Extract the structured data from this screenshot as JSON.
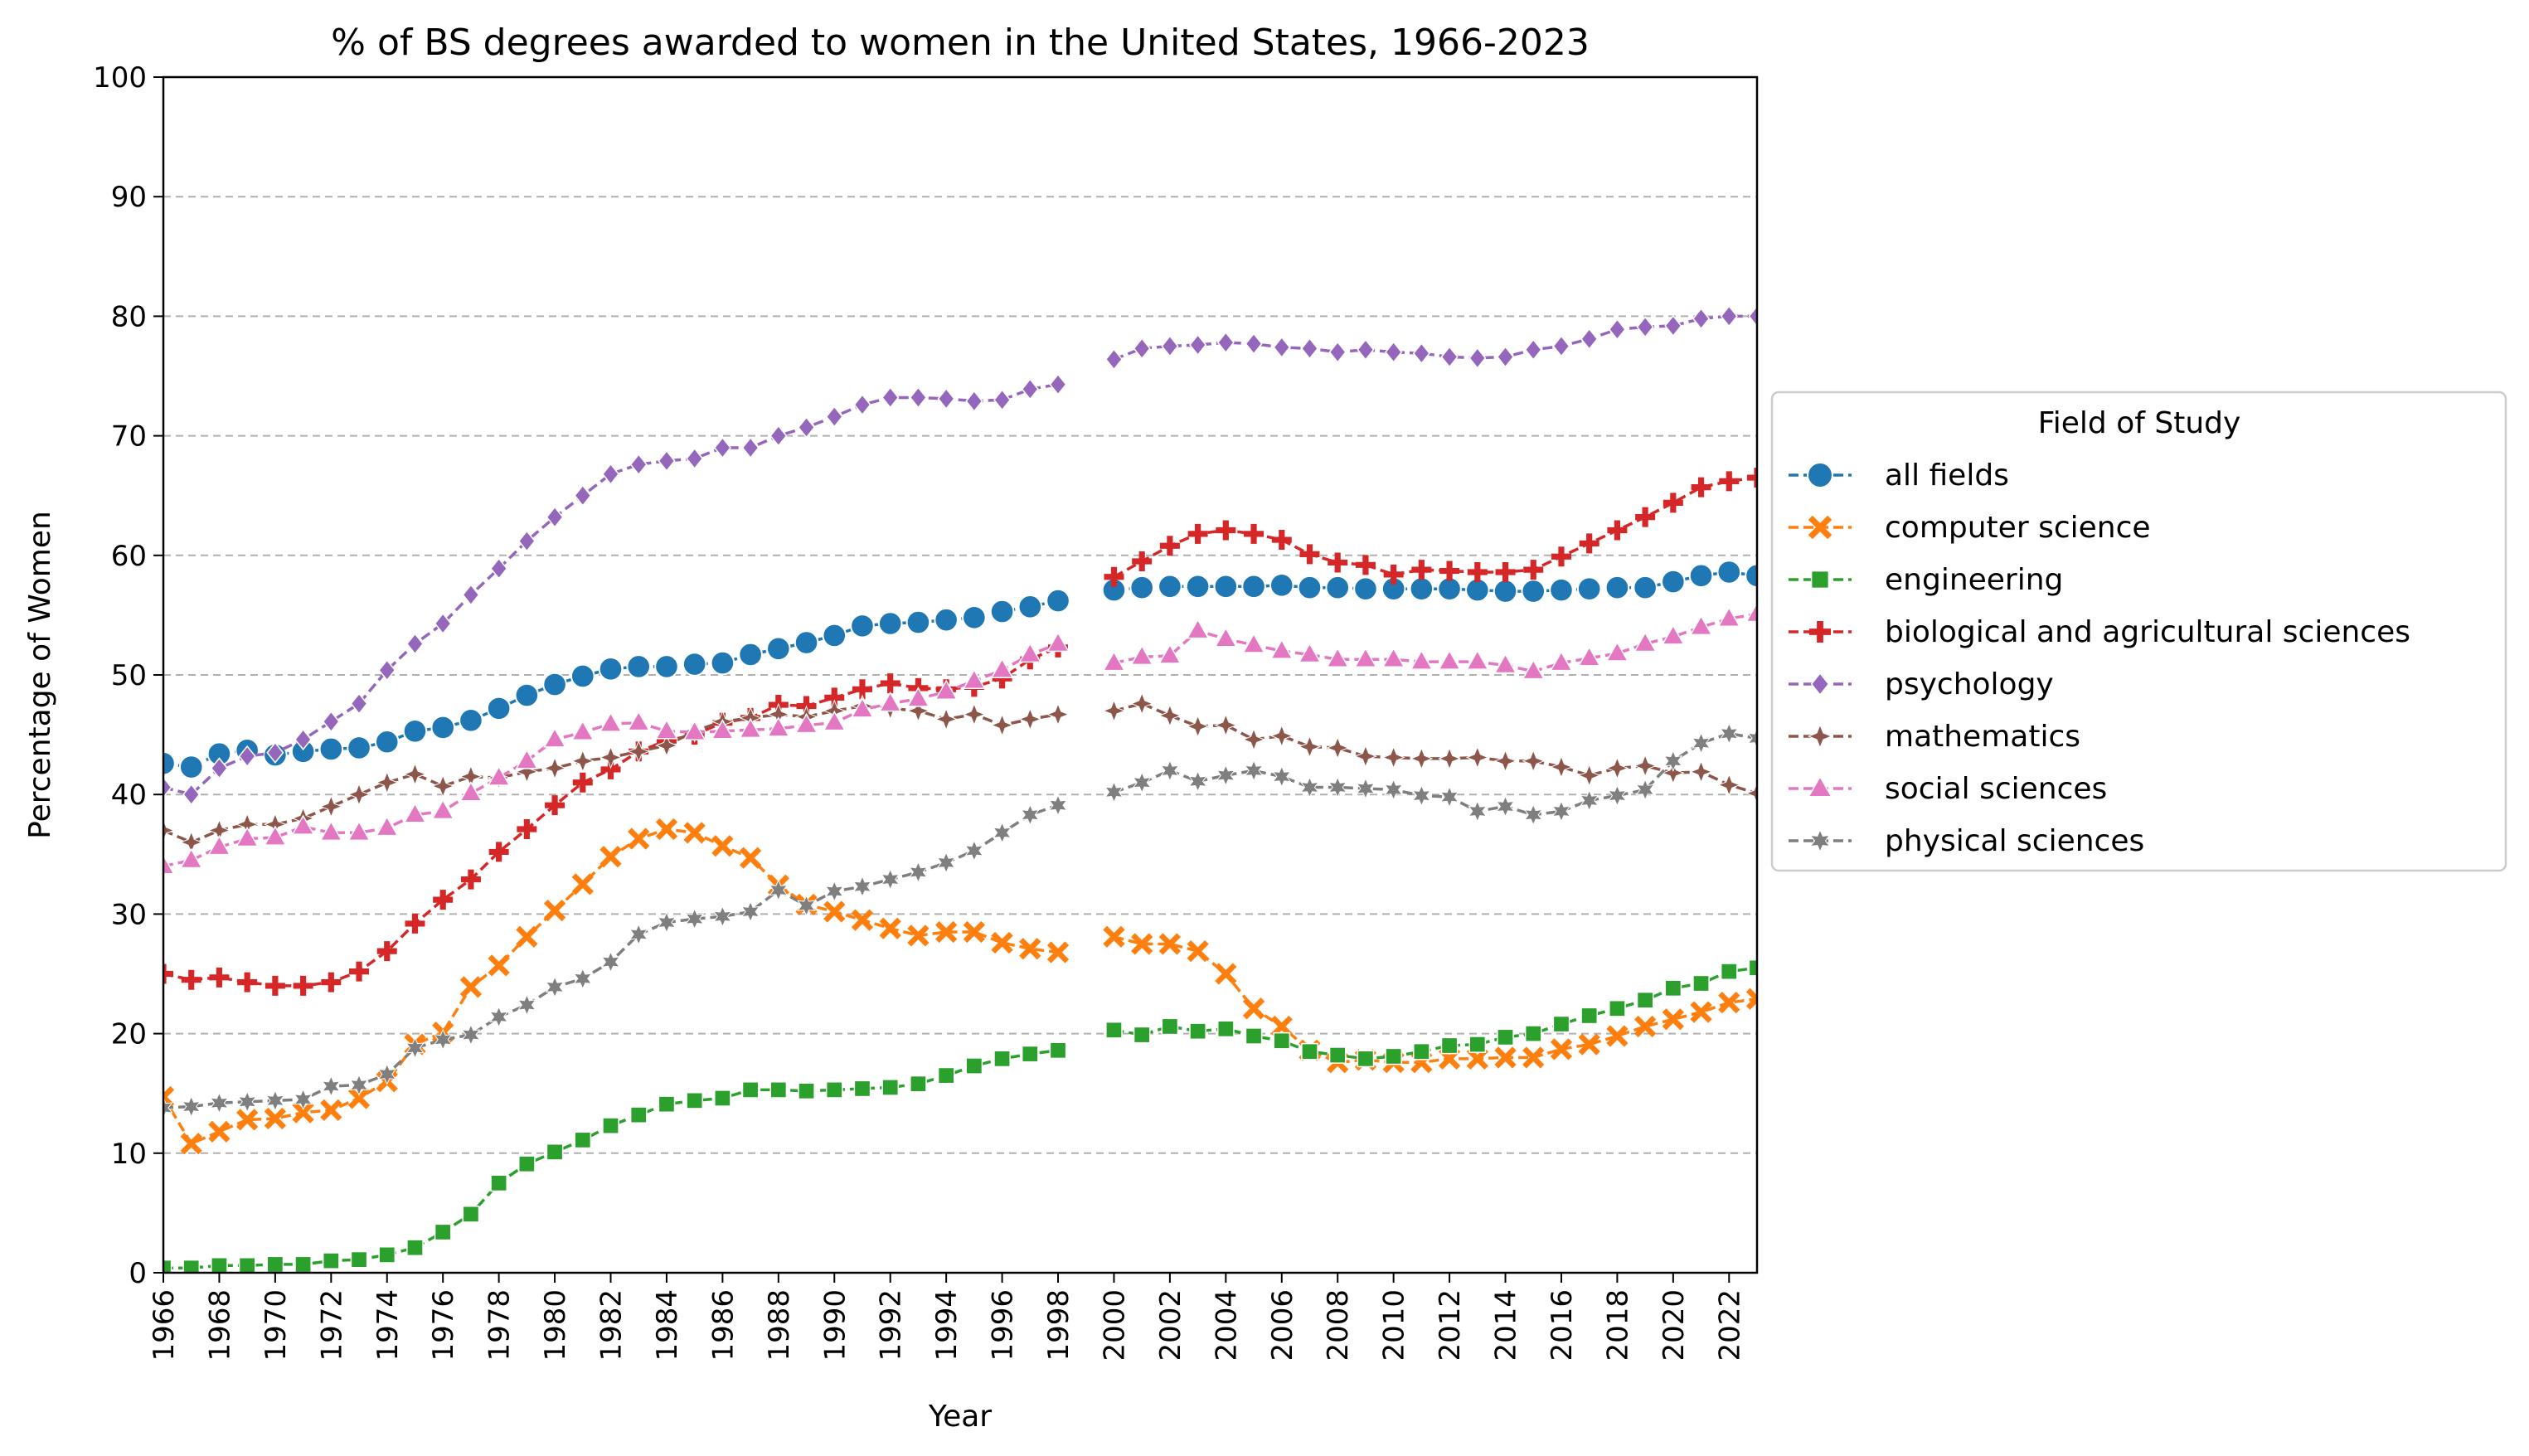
{
  "chart_data": {
    "type": "line",
    "title": "% of BS degrees awarded to women in the United States, 1966-2023",
    "xlabel": "Year",
    "ylabel": "Percentage of Women",
    "xlim": [
      1966,
      2023
    ],
    "ylim": [
      0,
      100
    ],
    "x_ticks": [
      "1966",
      "1968",
      "1970",
      "1972",
      "1974",
      "1976",
      "1978",
      "1980",
      "1982",
      "1984",
      "1986",
      "1988",
      "1990",
      "1992",
      "1994",
      "1996",
      "1998",
      "2000",
      "2002",
      "2004",
      "2006",
      "2008",
      "2010",
      "2012",
      "2014",
      "2016",
      "2018",
      "2020",
      "2022"
    ],
    "y_ticks": [
      "0",
      "10",
      "20",
      "30",
      "40",
      "50",
      "60",
      "70",
      "80",
      "90",
      "100"
    ],
    "grid": "horizontal dashed",
    "legend": {
      "title": "Field of Study",
      "placement": "outside-right"
    },
    "x": [
      1966,
      1967,
      1968,
      1969,
      1970,
      1971,
      1972,
      1973,
      1974,
      1975,
      1976,
      1977,
      1978,
      1979,
      1980,
      1981,
      1982,
      1983,
      1984,
      1985,
      1986,
      1987,
      1988,
      1989,
      1990,
      1991,
      1992,
      1993,
      1994,
      1995,
      1996,
      1997,
      1998,
      1999,
      2000,
      2001,
      2002,
      2003,
      2004,
      2005,
      2006,
      2007,
      2008,
      2009,
      2010,
      2011,
      2012,
      2013,
      2014,
      2015,
      2016,
      2017,
      2018,
      2019,
      2020,
      2021,
      2022,
      2023
    ],
    "series": [
      {
        "name": "all fields",
        "color": "#1f77b4",
        "marker": "circle",
        "values": [
          42.6,
          42.3,
          43.4,
          43.7,
          43.3,
          43.6,
          43.8,
          43.9,
          44.4,
          45.3,
          45.6,
          46.2,
          47.2,
          48.3,
          49.2,
          49.9,
          50.5,
          50.7,
          50.7,
          50.9,
          51.0,
          51.7,
          52.2,
          52.7,
          53.3,
          54.1,
          54.3,
          54.4,
          54.6,
          54.8,
          55.3,
          55.7,
          56.2,
          null,
          57.1,
          57.3,
          57.4,
          57.4,
          57.4,
          57.4,
          57.5,
          57.3,
          57.3,
          57.2,
          57.2,
          57.2,
          57.2,
          57.1,
          57.0,
          57.0,
          57.1,
          57.2,
          57.3,
          57.3,
          57.8,
          58.3,
          58.6,
          58.3
        ]
      },
      {
        "name": "computer science",
        "color": "#ff7f0e",
        "marker": "x",
        "values": [
          14.7,
          10.8,
          11.8,
          12.8,
          12.9,
          13.4,
          13.6,
          14.6,
          16.0,
          19.1,
          20.1,
          23.9,
          25.7,
          28.1,
          30.3,
          32.5,
          34.8,
          36.3,
          37.1,
          36.8,
          35.7,
          34.7,
          32.4,
          30.8,
          30.2,
          29.5,
          28.8,
          28.2,
          28.5,
          28.5,
          27.6,
          27.1,
          26.8,
          null,
          28.1,
          27.5,
          27.5,
          26.9,
          25.0,
          22.1,
          20.6,
          18.6,
          17.6,
          17.8,
          17.6,
          17.6,
          17.9,
          17.9,
          18.0,
          18.0,
          18.7,
          19.1,
          19.8,
          20.6,
          21.2,
          21.8,
          22.6,
          22.9
        ]
      },
      {
        "name": "engineering",
        "color": "#2ca02c",
        "marker": "square",
        "values": [
          0.4,
          0.4,
          0.6,
          0.6,
          0.7,
          0.7,
          1.0,
          1.1,
          1.5,
          2.1,
          3.4,
          4.9,
          7.5,
          9.1,
          10.1,
          11.1,
          12.3,
          13.2,
          14.1,
          14.4,
          14.6,
          15.3,
          15.3,
          15.2,
          15.3,
          15.4,
          15.5,
          15.8,
          16.5,
          17.3,
          17.9,
          18.3,
          18.6,
          null,
          20.3,
          19.9,
          20.6,
          20.2,
          20.4,
          19.8,
          19.4,
          18.5,
          18.2,
          17.9,
          18.1,
          18.5,
          19.0,
          19.1,
          19.7,
          20.0,
          20.8,
          21.5,
          22.1,
          22.8,
          23.8,
          24.2,
          25.2,
          25.5
        ]
      },
      {
        "name": "biological and agricultural sciences",
        "color": "#d62728",
        "marker": "plus",
        "values": [
          25.0,
          24.5,
          24.7,
          24.3,
          24.0,
          24.0,
          24.3,
          25.2,
          26.9,
          29.2,
          31.2,
          32.9,
          35.2,
          37.1,
          39.1,
          41.0,
          42.1,
          43.6,
          44.5,
          45.0,
          46.0,
          46.4,
          47.5,
          47.4,
          48.1,
          48.8,
          49.3,
          48.9,
          48.8,
          49.0,
          49.7,
          51.3,
          52.3,
          null,
          58.2,
          59.5,
          60.8,
          61.8,
          62.1,
          61.8,
          61.3,
          60.1,
          59.4,
          59.2,
          58.4,
          58.8,
          58.7,
          58.6,
          58.6,
          58.8,
          59.9,
          61.0,
          62.1,
          63.2,
          64.4,
          65.7,
          66.2,
          66.5
        ]
      },
      {
        "name": "psychology",
        "color": "#9467bd",
        "marker": "diamond",
        "values": [
          40.6,
          40.0,
          42.2,
          43.2,
          43.5,
          44.6,
          46.1,
          47.6,
          50.4,
          52.6,
          54.3,
          56.7,
          58.9,
          61.2,
          63.2,
          65.0,
          66.8,
          67.6,
          67.9,
          68.1,
          69.0,
          69.0,
          70.0,
          70.7,
          71.6,
          72.6,
          73.2,
          73.2,
          73.1,
          72.9,
          73.0,
          73.9,
          74.3,
          null,
          76.4,
          77.3,
          77.5,
          77.6,
          77.8,
          77.7,
          77.4,
          77.3,
          77.0,
          77.2,
          77.0,
          76.9,
          76.6,
          76.5,
          76.6,
          77.2,
          77.5,
          78.1,
          78.9,
          79.1,
          79.2,
          79.8,
          80.0,
          80.0
        ]
      },
      {
        "name": "mathematics",
        "color": "#8c564b",
        "marker": "star",
        "values": [
          37.0,
          36.0,
          37.0,
          37.5,
          37.5,
          38.0,
          39.0,
          40.0,
          41.0,
          41.7,
          40.7,
          41.5,
          41.4,
          41.9,
          42.2,
          42.8,
          43.1,
          43.6,
          44.1,
          45.3,
          46.1,
          46.4,
          46.7,
          46.5,
          47.0,
          47.4,
          47.2,
          47.0,
          46.3,
          46.7,
          45.8,
          46.3,
          46.7,
          null,
          47.0,
          47.6,
          46.6,
          45.7,
          45.8,
          44.6,
          44.9,
          44.0,
          43.9,
          43.2,
          43.1,
          43.0,
          43.0,
          43.1,
          42.8,
          42.8,
          42.3,
          41.6,
          42.2,
          42.4,
          41.8,
          41.9,
          40.8,
          40.1
        ]
      },
      {
        "name": "social sciences",
        "color": "#e377c2",
        "marker": "triangle",
        "values": [
          34.0,
          34.5,
          35.6,
          36.3,
          36.4,
          37.3,
          36.8,
          36.8,
          37.2,
          38.3,
          38.6,
          40.1,
          41.4,
          42.8,
          44.6,
          45.2,
          45.9,
          46.0,
          45.3,
          45.2,
          45.3,
          45.4,
          45.5,
          45.8,
          46.0,
          47.1,
          47.6,
          48.0,
          48.6,
          49.5,
          50.4,
          51.7,
          52.6,
          null,
          51.0,
          51.5,
          51.6,
          53.7,
          53.0,
          52.5,
          52.0,
          51.7,
          51.3,
          51.3,
          51.3,
          51.1,
          51.1,
          51.1,
          50.8,
          50.3,
          51.0,
          51.4,
          51.8,
          52.6,
          53.2,
          54.0,
          54.7,
          55.1
        ]
      },
      {
        "name": "physical sciences",
        "color": "#7f7f7f",
        "marker": "hexagram",
        "values": [
          13.8,
          13.9,
          14.2,
          14.3,
          14.4,
          14.5,
          15.6,
          15.7,
          16.6,
          18.8,
          19.5,
          19.9,
          21.4,
          22.4,
          23.9,
          24.6,
          26.0,
          28.3,
          29.3,
          29.6,
          29.8,
          30.2,
          32.0,
          30.7,
          31.9,
          32.3,
          32.9,
          33.5,
          34.3,
          35.3,
          36.8,
          38.3,
          39.1,
          null,
          40.2,
          41.0,
          42.0,
          41.1,
          41.6,
          42.0,
          41.5,
          40.6,
          40.6,
          40.5,
          40.4,
          39.9,
          39.8,
          38.6,
          39.0,
          38.3,
          38.6,
          39.5,
          39.9,
          40.4,
          42.8,
          44.3,
          45.1,
          44.7
        ]
      }
    ]
  }
}
